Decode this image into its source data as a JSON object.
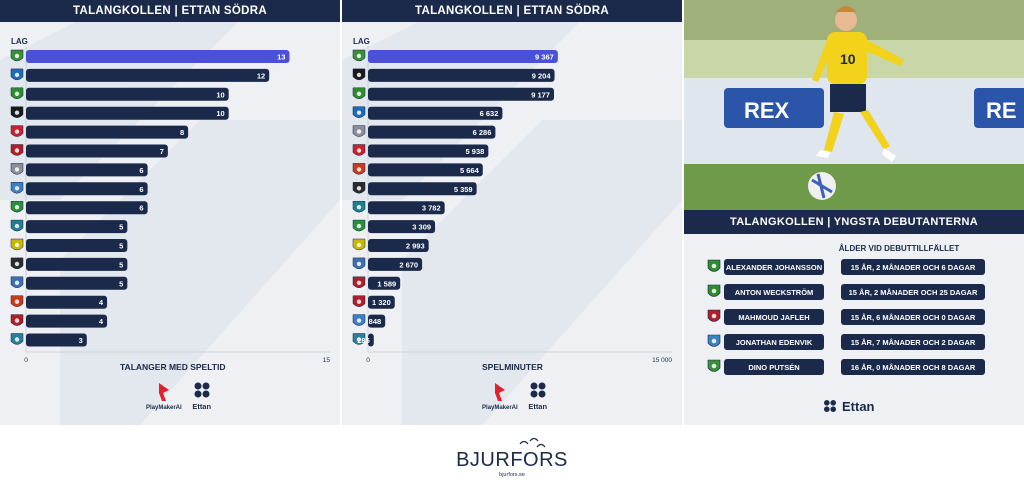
{
  "colors": {
    "navy": "#1b2a4a",
    "highlight": "#4b50d8",
    "panel_bg": "#eef0f4",
    "deco": "#dfe3ea"
  },
  "left_panel": {
    "header": "TALANGKOLLEN | ETTAN SÖDRA",
    "lag_label": "LAG",
    "footer_title": "TALANGER MED SPELTID",
    "brand_playmaker": "PlayMakerAI",
    "brand_ettan": "Ettan"
  },
  "mid_panel": {
    "header": "TALANGKOLLEN | ETTAN SÖDRA",
    "lag_label": "LAG",
    "footer_title": "SPELMINUTER",
    "brand_playmaker": "PlayMakerAI",
    "brand_ettan": "Ettan"
  },
  "right_panel": {
    "header": "TALANGKOLLEN | YNGSTA DEBUTANTERNA",
    "age_title": "ÅLDER VID DEBUTTILLFÄLLET",
    "brand_ettan": "Ettan",
    "photo_text": "REX",
    "shirt_number": "10",
    "debutants": [
      {
        "name": "ALEXANDER JOHANSSON",
        "age": "15 ÅR, 2 MÅNADER OCH 6 DAGAR",
        "logo_icon": "club-crest-icon"
      },
      {
        "name": "ANTON WECKSTRÖM",
        "age": "15 ÅR, 2 MÅNADER OCH 25 DAGAR",
        "logo_icon": "club-crest-icon"
      },
      {
        "name": "MAHMOUD JAFLEH",
        "age": "15 ÅR, 6 MÅNADER OCH 0 DAGAR",
        "logo_icon": "club-crest-icon"
      },
      {
        "name": "JONATHAN EDENVIK",
        "age": "15 ÅR, 7 MÅNADER OCH 2 DAGAR",
        "logo_icon": "club-crest-icon"
      },
      {
        "name": "DINO PUTSÉN",
        "age": "16 ÅR, 0 MÅNADER OCH 8 DAGAR",
        "logo_icon": "club-crest-icon"
      }
    ]
  },
  "bjurfors": {
    "name": "BJURFORS",
    "url": "bjurfors.se"
  },
  "chart_data": [
    {
      "type": "bar",
      "orientation": "horizontal",
      "title": "TALANGKOLLEN | ETTAN SÖDRA",
      "xlabel": "TALANGER MED SPELTID",
      "ylabel": "LAG",
      "xlim": [
        0,
        15
      ],
      "x_ticks": [
        "0",
        "15"
      ],
      "values": [
        13,
        12,
        10,
        10,
        8,
        7,
        6,
        6,
        6,
        5,
        5,
        5,
        5,
        4,
        4,
        3
      ],
      "value_labels": [
        "13",
        "12",
        "10",
        "10",
        "8",
        "7",
        "6",
        "6",
        "6",
        "5",
        "5",
        "5",
        "5",
        "4",
        "4",
        "3"
      ],
      "team_crest_colors": [
        "#3a8f3a",
        "#1e6bb8",
        "#2e8b2e",
        "#1a1a1a",
        "#c8202f",
        "#b01e2a",
        "#8a8f99",
        "#3b7fc4",
        "#2a8f3a",
        "#1f7f8f",
        "#c9b800",
        "#2a2a2a",
        "#3d6fb0",
        "#c93a1a",
        "#b01e2a",
        "#2a7f9f"
      ],
      "highlight_index": 0
    },
    {
      "type": "bar",
      "orientation": "horizontal",
      "title": "TALANGKOLLEN | ETTAN SÖDRA",
      "xlabel": "SPELMINUTER",
      "ylabel": "LAG",
      "xlim": [
        0,
        15000
      ],
      "x_ticks": [
        "0",
        "15 000"
      ],
      "values": [
        9367,
        9204,
        9177,
        6632,
        6286,
        5938,
        5664,
        5359,
        3782,
        3309,
        2993,
        2670,
        1589,
        1320,
        848,
        285
      ],
      "value_labels": [
        "9 367",
        "9 204",
        "9 177",
        "6 632",
        "6 286",
        "5 938",
        "5 664",
        "5 359",
        "3 782",
        "3 309",
        "2 993",
        "2 670",
        "1 589",
        "1 320",
        "848",
        "285"
      ],
      "team_crest_colors": [
        "#3a8f3a",
        "#1a1a1a",
        "#2e8b2e",
        "#1e6bb8",
        "#8a8f99",
        "#c8202f",
        "#c93a1a",
        "#2a2a2a",
        "#1f7f8f",
        "#2a8f3a",
        "#c9b800",
        "#3d6fb0",
        "#b01e2a",
        "#b01e2a",
        "#3b7fc4",
        "#2a7f9f"
      ],
      "highlight_index": 0
    }
  ]
}
